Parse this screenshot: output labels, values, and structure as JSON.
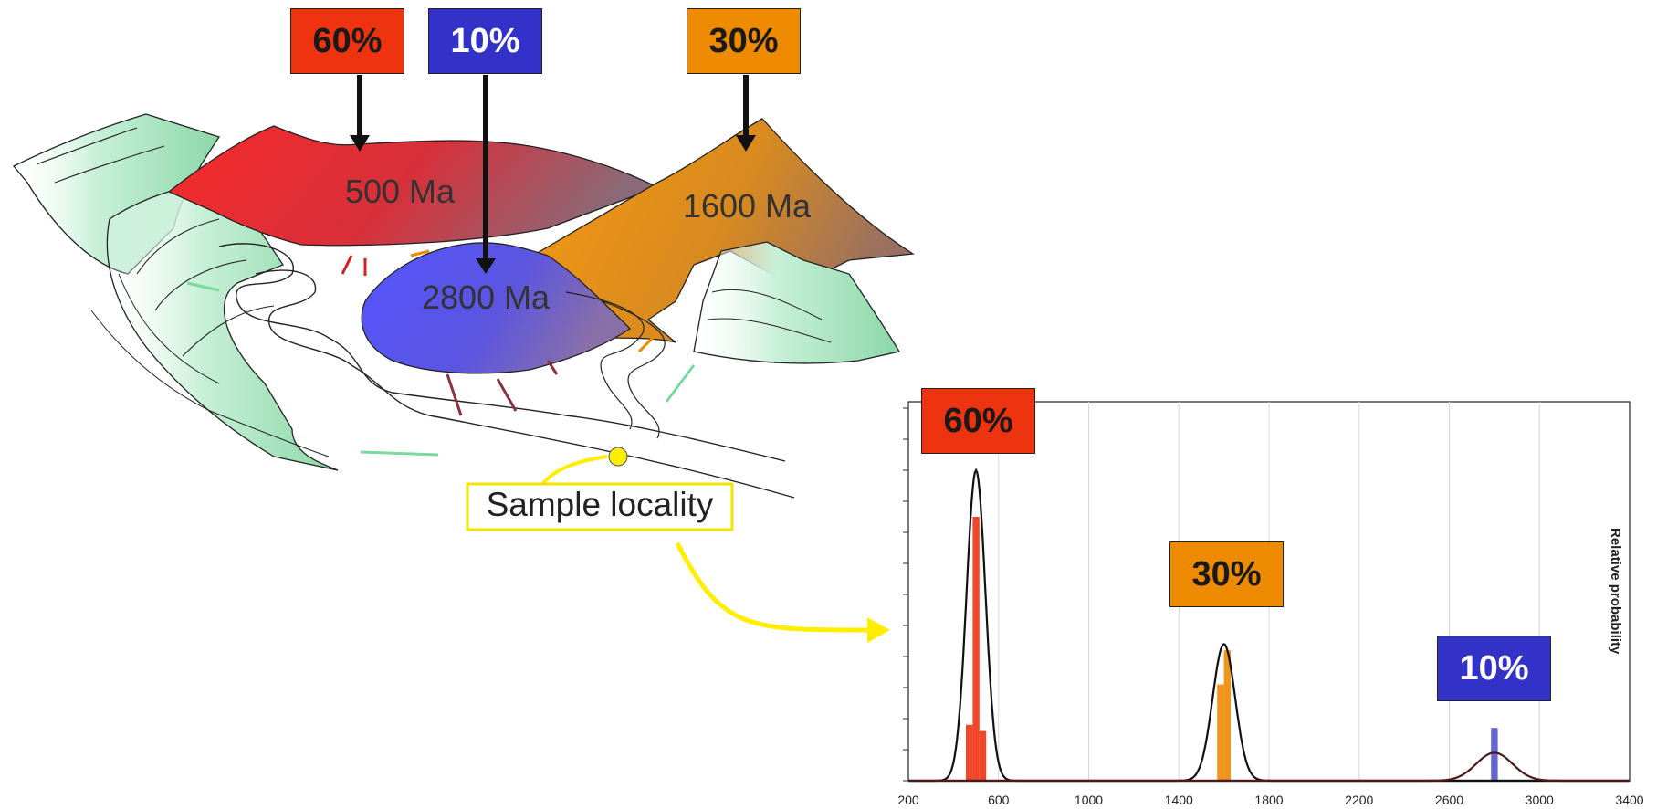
{
  "colors": {
    "red": "#ee3311",
    "blue": "#3232c8",
    "orange": "#ee8a00"
  },
  "landscape": {
    "top_labels": [
      {
        "text": "60%",
        "color": "red"
      },
      {
        "text": "10%",
        "color": "blue"
      },
      {
        "text": "30%",
        "color": "orange"
      }
    ],
    "source_ages": [
      "500 Ma",
      "1600 Ma",
      "2800 Ma"
    ],
    "sample_label": "Sample locality"
  },
  "chart_data": {
    "type": "line",
    "title": "",
    "xlabel": "",
    "ylabel": "Relative probability",
    "xlim": [
      200,
      3400
    ],
    "x_ticks": [
      200,
      600,
      1000,
      1400,
      1800,
      2200,
      2600,
      3000,
      3400
    ],
    "grid": true,
    "series": [
      {
        "peak_age": 500,
        "relative_height": 1.0,
        "proportion_label": "60%",
        "color": "red"
      },
      {
        "peak_age": 1600,
        "relative_height": 0.44,
        "proportion_label": "30%",
        "color": "orange"
      },
      {
        "peak_age": 2800,
        "relative_height": 0.09,
        "proportion_label": "10%",
        "color": "blue"
      }
    ]
  }
}
